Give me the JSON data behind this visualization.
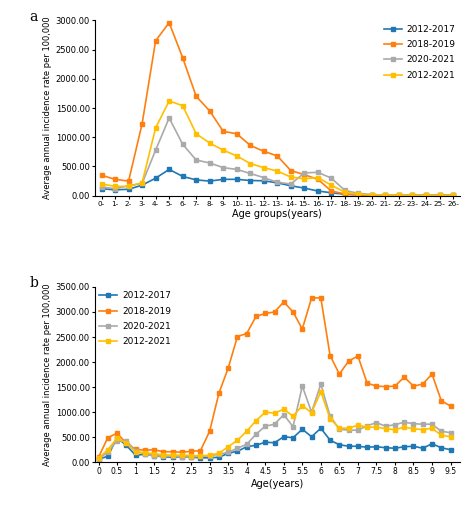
{
  "panel_a": {
    "x_labels": [
      "0-",
      "1-",
      "2-",
      "3-",
      "4-",
      "5-",
      "6-",
      "7-",
      "8-",
      "9-",
      "10-",
      "11-",
      "12-",
      "13-",
      "14-",
      "15-",
      "16-",
      "17-",
      "18-",
      "19-",
      "20-",
      "21-",
      "22-",
      "23-",
      "24-",
      "25-",
      "26-"
    ],
    "x_vals": [
      0,
      1,
      2,
      3,
      4,
      5,
      6,
      7,
      8,
      9,
      10,
      11,
      12,
      13,
      14,
      15,
      16,
      17,
      18,
      19,
      20,
      21,
      22,
      23,
      24,
      25,
      26
    ],
    "series": {
      "2012-2017": [
        120,
        100,
        110,
        180,
        300,
        450,
        330,
        270,
        250,
        280,
        280,
        260,
        255,
        220,
        170,
        130,
        80,
        50,
        25,
        15,
        10,
        8,
        6,
        5,
        5,
        5,
        5
      ],
      "2018-2019": [
        350,
        280,
        250,
        1230,
        2650,
        2960,
        2360,
        1700,
        1450,
        1100,
        1060,
        860,
        760,
        680,
        430,
        360,
        280,
        80,
        30,
        15,
        10,
        8,
        5,
        5,
        5,
        5,
        5
      ],
      "2020-2021": [
        150,
        120,
        170,
        210,
        780,
        1330,
        880,
        610,
        560,
        480,
        450,
        380,
        310,
        230,
        200,
        390,
        400,
        300,
        90,
        40,
        20,
        10,
        8,
        5,
        5,
        5,
        5
      ],
      "2012-2021": [
        200,
        160,
        160,
        220,
        1160,
        1620,
        1540,
        1060,
        900,
        780,
        680,
        550,
        480,
        420,
        320,
        290,
        310,
        180,
        60,
        25,
        15,
        10,
        8,
        5,
        5,
        5,
        5
      ]
    },
    "colors": {
      "2012-2017": "#1f77b4",
      "2018-2019": "#ff7f0e",
      "2020-2021": "#aaaaaa",
      "2012-2021": "#ffbf00"
    },
    "ylabel": "Average annual incidence rate per 100,000",
    "xlabel": "Age groups(years)",
    "ylim": [
      0,
      3000
    ],
    "yticks": [
      0,
      500,
      1000,
      1500,
      2000,
      2500,
      3000
    ],
    "ytick_labels": [
      "0.00",
      "500.00",
      "1000.00",
      "1500.00",
      "2000.00",
      "2500.00",
      "3000.00"
    ]
  },
  "panel_b": {
    "x_vals": [
      0,
      0.25,
      0.5,
      0.75,
      1.0,
      1.25,
      1.5,
      1.75,
      2.0,
      2.25,
      2.5,
      2.75,
      3.0,
      3.25,
      3.5,
      3.75,
      4.0,
      4.25,
      4.5,
      4.75,
      5.0,
      5.25,
      5.5,
      5.75,
      6.0,
      6.25,
      6.5,
      6.75,
      7.0,
      7.25,
      7.5,
      7.75,
      8.0,
      8.25,
      8.5,
      8.75,
      9.0,
      9.25,
      9.5
    ],
    "series": {
      "2012-2017": [
        60,
        120,
        490,
        340,
        140,
        160,
        130,
        110,
        100,
        110,
        100,
        90,
        90,
        100,
        180,
        220,
        310,
        340,
        400,
        390,
        510,
        490,
        660,
        510,
        680,
        440,
        350,
        320,
        320,
        300,
        310,
        290,
        280,
        310,
        320,
        280,
        370,
        290,
        250
      ],
      "2018-2019": [
        100,
        490,
        580,
        380,
        260,
        240,
        250,
        210,
        210,
        200,
        220,
        230,
        620,
        1380,
        1880,
        2510,
        2570,
        2910,
        2970,
        3000,
        3200,
        3000,
        2660,
        3280,
        3280,
        2130,
        1760,
        2020,
        2120,
        1580,
        1520,
        1510,
        1520,
        1700,
        1520,
        1560,
        1760,
        1230,
        1120
      ],
      "2020-2021": [
        70,
        200,
        430,
        430,
        230,
        160,
        130,
        120,
        120,
        110,
        105,
        120,
        130,
        160,
        200,
        280,
        360,
        560,
        720,
        760,
        950,
        710,
        1520,
        1000,
        1560,
        920,
        660,
        640,
        640,
        730,
        790,
        720,
        750,
        800,
        770,
        760,
        760,
        620,
        590
      ],
      "2012-2021": [
        80,
        250,
        480,
        380,
        210,
        190,
        170,
        150,
        140,
        140,
        135,
        130,
        140,
        180,
        310,
        440,
        620,
        830,
        1000,
        980,
        1060,
        920,
        1130,
        990,
        1410,
        870,
        680,
        680,
        740,
        700,
        700,
        670,
        650,
        700,
        670,
        650,
        680,
        540,
        510
      ]
    },
    "colors": {
      "2012-2017": "#1f77b4",
      "2018-2019": "#ff7f0e",
      "2020-2021": "#aaaaaa",
      "2012-2021": "#ffbf00"
    },
    "ylabel": "Average annual incidence rate per 100,000",
    "xlabel": "Age(years)",
    "ylim": [
      0,
      3500
    ],
    "yticks": [
      0,
      500,
      1000,
      1500,
      2000,
      2500,
      3000,
      3500
    ],
    "ytick_labels": [
      "0.00",
      "500.00",
      "1000.00",
      "1500.00",
      "2000.00",
      "2500.00",
      "3000.00",
      "3500.00"
    ],
    "xticks": [
      0,
      0.5,
      1.0,
      1.5,
      2.0,
      2.5,
      3.0,
      3.5,
      4.0,
      4.5,
      5.0,
      5.5,
      6.0,
      6.5,
      7.0,
      7.5,
      8.0,
      8.5,
      9.0,
      9.5
    ],
    "xtick_labels": [
      "0",
      "0.5",
      "1",
      "1.5",
      "2",
      "2.5",
      "3",
      "3.5",
      "4",
      "4.5",
      "5",
      "5.5",
      "6",
      "6.5",
      "7",
      "7.5",
      "8",
      "8.5",
      "9",
      "9.5"
    ]
  },
  "legend_order": [
    "2012-2017",
    "2018-2019",
    "2020-2021",
    "2012-2021"
  ],
  "marker": "s",
  "markersize": 3,
  "linewidth": 1.2,
  "bg_color": "#ffffff"
}
